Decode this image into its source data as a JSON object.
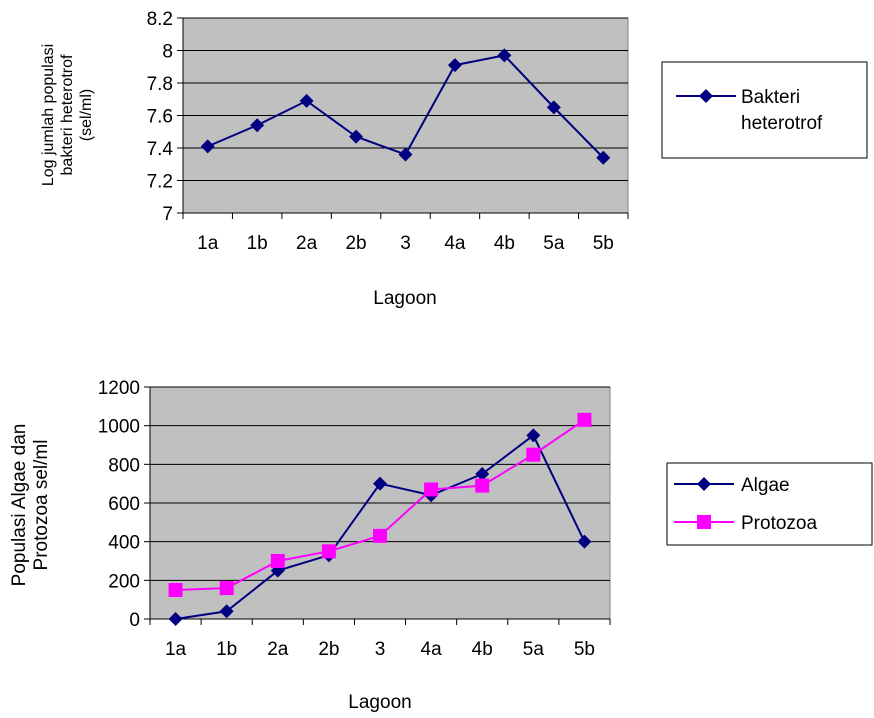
{
  "chart_data": [
    {
      "type": "line",
      "title": "",
      "categories": [
        "1a",
        "1b",
        "2a",
        "2b",
        "3",
        "4a",
        "4b",
        "5a",
        "5b"
      ],
      "xlabel": "Lagoon",
      "ylabel_lines": [
        "Log jumlah populasi",
        "bakteri heterotrof",
        "(sel/ml)"
      ],
      "ylim": [
        7,
        8.2
      ],
      "yticks": [
        "7",
        "7.2",
        "7.4",
        "7.6",
        "7.8",
        "8",
        "8.2"
      ],
      "grid": true,
      "plot_background": "#c0c0c0",
      "legend_position": "right",
      "legend_lines": [
        "Bakteri",
        "heterotrof"
      ],
      "series": [
        {
          "name": "Bakteri heterotrof",
          "color": "#000080",
          "marker": "diamond",
          "values": [
            7.41,
            7.54,
            7.69,
            7.47,
            7.36,
            7.91,
            7.97,
            7.65,
            7.34
          ]
        }
      ]
    },
    {
      "type": "line",
      "title": "",
      "categories": [
        "1a",
        "1b",
        "2a",
        "2b",
        "3",
        "4a",
        "4b",
        "5a",
        "5b"
      ],
      "xlabel": "Lagoon",
      "ylabel_lines": [
        "Populasi Algae dan",
        "Protozoa sel/ml"
      ],
      "ylim": [
        0,
        1200
      ],
      "yticks": [
        "0",
        "200",
        "400",
        "600",
        "800",
        "1000",
        "1200"
      ],
      "grid": true,
      "plot_background": "#c0c0c0",
      "legend_position": "right",
      "series": [
        {
          "name": "Algae",
          "color": "#000080",
          "marker": "diamond",
          "values": [
            0,
            40,
            250,
            330,
            700,
            640,
            750,
            950,
            400
          ]
        },
        {
          "name": "Protozoa",
          "color": "#ff00ff",
          "marker": "square",
          "values": [
            150,
            160,
            300,
            350,
            430,
            670,
            690,
            850,
            1030
          ]
        }
      ]
    }
  ]
}
